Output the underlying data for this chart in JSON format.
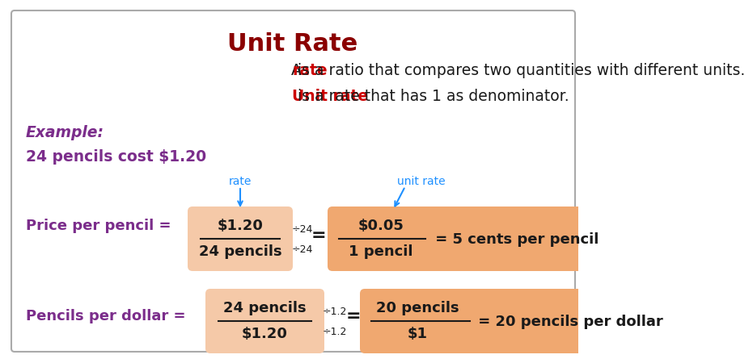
{
  "title": "Unit Rate",
  "title_color": "#8B0000",
  "bg_color": "#FFFFFF",
  "border_color": "#AAAAAA",
  "line1_parts": [
    {
      "text": "A ",
      "color": "#1a1a1a",
      "bold": false,
      "italic": false
    },
    {
      "text": "rate",
      "color": "#CC0000",
      "bold": true,
      "italic": false
    },
    {
      "text": " is a ratio that compares two quantities with different units.",
      "color": "#1a1a1a",
      "bold": false,
      "italic": false
    }
  ],
  "line2_parts": [
    {
      "text": "Unit rate",
      "color": "#CC0000",
      "bold": true,
      "italic": false
    },
    {
      "text": " is a rate that has 1 as denominator.",
      "color": "#1a1a1a",
      "bold": false,
      "italic": false
    }
  ],
  "example_label": "Example:",
  "example_color": "#7B2D8B",
  "problem_text": "24 pencils cost $1.20",
  "problem_color": "#7B2D8B",
  "box_fill_light": "#F5C9A8",
  "box_fill_dark": "#F0A870",
  "arrow_color": "#1E90FF",
  "rate_label": "rate",
  "unit_rate_label": "unit rate",
  "label_color": "#1E90FF",
  "eq1_label": "Price per pencil =",
  "eq1_frac1_num": "$1.20",
  "eq1_frac1_den": "24 pencils",
  "eq1_div": "÷24",
  "eq1_frac2_num": "$0.05",
  "eq1_frac2_den": "1 pencil",
  "eq1_result": " = 5 cents per pencil",
  "eq2_label": "Pencils per dollar =",
  "eq2_frac1_num": "24 pencils",
  "eq2_frac1_den": "$1.20",
  "eq2_div": "÷1.2",
  "eq2_frac2_num": "20 pencils",
  "eq2_frac2_den": "$1",
  "eq2_result": " = 20 pencils per dollar",
  "fraction_color": "#1a1a1a",
  "label_left_color": "#7B2D8B"
}
